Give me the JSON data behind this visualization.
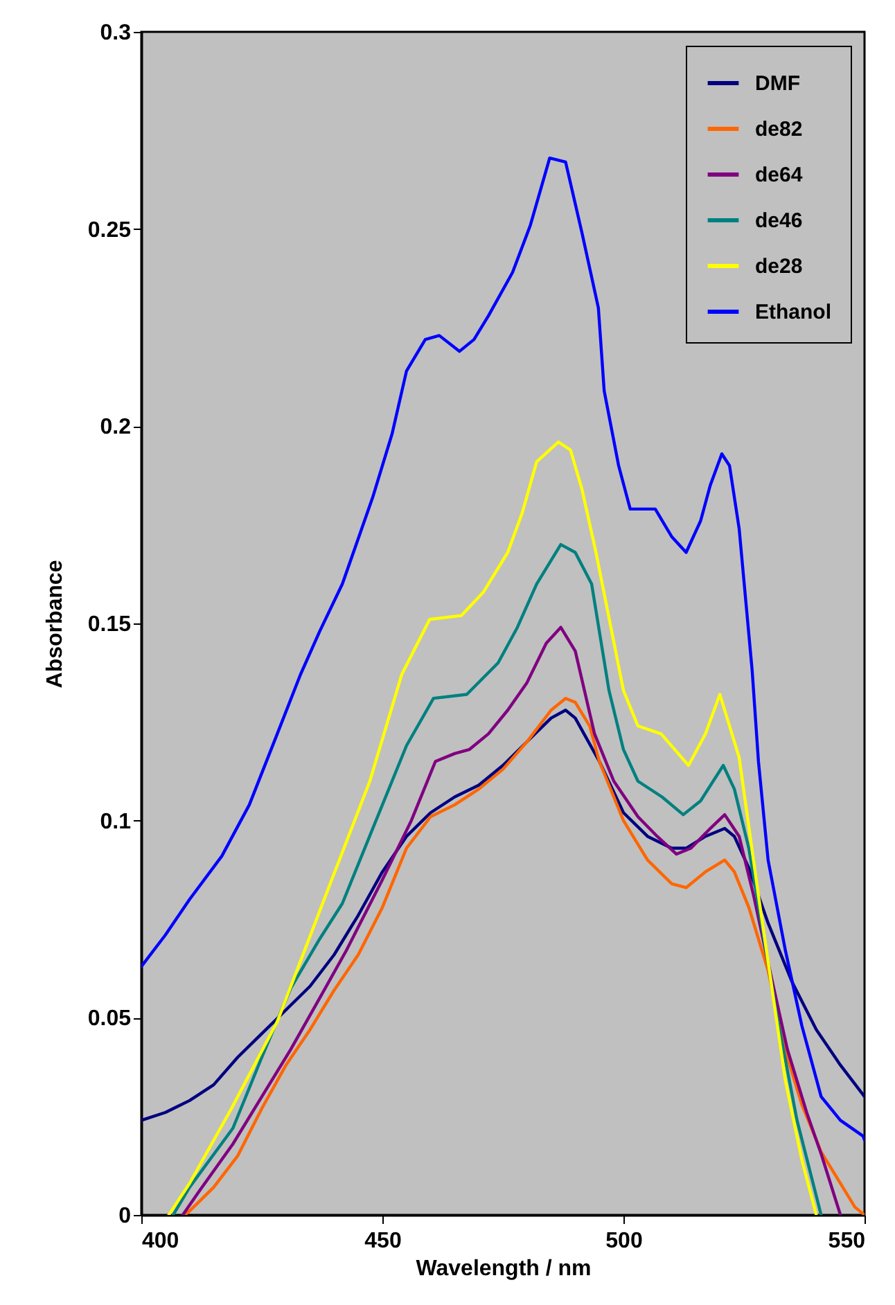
{
  "chart_data": {
    "type": "line",
    "xlabel": "Wavelength / nm",
    "ylabel": "Absorbance",
    "xlim": [
      400,
      550
    ],
    "xticks": [
      400,
      450,
      500,
      550
    ],
    "ylim": [
      0,
      0.3
    ],
    "yticks": [
      0,
      0.05,
      0.1,
      0.15,
      0.2,
      0.25,
      0.3
    ],
    "grid": false,
    "legend": "top right",
    "marker": "none",
    "line_style": "solid",
    "series": [
      {
        "name": "DMF",
        "color": "#000080",
        "x": [
          400,
          405,
          410,
          415,
          420,
          425,
          430,
          435,
          440,
          445,
          450,
          455,
          460,
          465,
          470,
          475,
          480,
          485,
          488,
          490,
          495,
          500,
          505,
          510,
          513,
          517,
          521,
          523,
          526,
          530,
          535,
          540,
          545,
          550
        ],
        "values": [
          0.024,
          0.026,
          0.029,
          0.033,
          0.04,
          0.046,
          0.052,
          0.058,
          0.066,
          0.076,
          0.087,
          0.096,
          0.102,
          0.106,
          0.109,
          0.114,
          0.12,
          0.126,
          0.128,
          0.126,
          0.115,
          0.102,
          0.096,
          0.093,
          0.093,
          0.096,
          0.098,
          0.096,
          0.088,
          0.074,
          0.059,
          0.047,
          0.038,
          0.03
        ]
      },
      {
        "name": "de82",
        "color": "#ff6600",
        "x": [
          409,
          410,
          415,
          420,
          425,
          430,
          435,
          440,
          445,
          450,
          455,
          460,
          465,
          470,
          475,
          480,
          485,
          488,
          490,
          493,
          495,
          500,
          505,
          510,
          513,
          517,
          521,
          523,
          526,
          530,
          534,
          537,
          541,
          545,
          548,
          550
        ],
        "values": [
          0,
          0.001,
          0.007,
          0.015,
          0.027,
          0.038,
          0.047,
          0.057,
          0.066,
          0.078,
          0.093,
          0.101,
          0.104,
          0.108,
          0.113,
          0.12,
          0.128,
          0.131,
          0.13,
          0.124,
          0.115,
          0.1,
          0.09,
          0.084,
          0.083,
          0.087,
          0.09,
          0.087,
          0.078,
          0.062,
          0.04,
          0.028,
          0.016,
          0.008,
          0.002,
          0
        ]
      },
      {
        "name": "de64",
        "color": "#800080",
        "x": [
          408.6,
          412,
          419,
          425,
          431,
          437,
          442.5,
          450,
          456,
          461,
          465,
          468,
          472,
          476,
          480,
          484,
          487,
          490,
          494,
          498,
          503,
          507,
          511,
          514,
          518,
          521,
          524,
          527,
          530,
          534,
          538,
          541,
          545
        ],
        "values": [
          0,
          0.006,
          0.018,
          0.03,
          0.042,
          0.055,
          0.067,
          0.085,
          0.1,
          0.115,
          0.117,
          0.118,
          0.122,
          0.128,
          0.135,
          0.145,
          0.149,
          0.143,
          0.122,
          0.11,
          0.101,
          0.096,
          0.0915,
          0.093,
          0.098,
          0.1015,
          0.096,
          0.081,
          0.064,
          0.042,
          0.026,
          0.0155,
          0
        ]
      },
      {
        "name": "de46",
        "color": "#008080",
        "x": [
          406.6,
          410,
          419,
          425,
          431,
          437,
          441.7,
          448,
          455,
          460.6,
          467.5,
          474,
          478,
          482,
          487,
          490,
          493.4,
          497,
          500,
          503,
          508,
          512.4,
          516,
          520.7,
          523,
          526,
          531.6,
          536,
          541
        ],
        "values": [
          0,
          0.007,
          0.022,
          0.04,
          0.0575,
          0.07,
          0.079,
          0.098,
          0.119,
          0.131,
          0.132,
          0.14,
          0.149,
          0.16,
          0.17,
          0.168,
          0.16,
          0.133,
          0.118,
          0.11,
          0.106,
          0.1015,
          0.105,
          0.114,
          0.108,
          0.093,
          0.052,
          0.024,
          0
        ]
      },
      {
        "name": "de28",
        "color": "#ffff00",
        "x": [
          405.7,
          410,
          418.7,
          428.2,
          437.6,
          447.4,
          454,
          459.8,
          466.4,
          471,
          476,
          479,
          482,
          486.5,
          489,
          491.4,
          494.3,
          500,
          503,
          507.8,
          513.5,
          517,
          520,
          524,
          528,
          533.6,
          537,
          540
        ],
        "values": [
          0,
          0.008,
          0.027,
          0.049,
          0.079,
          0.11,
          0.137,
          0.151,
          0.152,
          0.158,
          0.168,
          0.178,
          0.191,
          0.196,
          0.194,
          0.184,
          0.168,
          0.133,
          0.124,
          0.122,
          0.114,
          0.122,
          0.132,
          0.116,
          0.081,
          0.034,
          0.014,
          0
        ]
      },
      {
        "name": "Ethanol",
        "color": "#0000ff",
        "x": [
          400,
          405,
          410,
          416.7,
          422.4,
          428.2,
          433,
          437,
          441.7,
          448,
          452,
          455,
          458.9,
          461.8,
          466,
          469,
          472,
          477,
          480.7,
          484.7,
          488,
          491.4,
          494.8,
          496,
          499,
          501.4,
          504,
          506.6,
          510,
          513,
          516,
          518,
          520.4,
          522,
          524,
          526.7,
          528,
          530,
          533.6,
          537,
          541,
          545,
          549.7,
          550
        ],
        "values": [
          0.063,
          0.071,
          0.08,
          0.091,
          0.104,
          0.122,
          0.137,
          0.148,
          0.16,
          0.182,
          0.198,
          0.214,
          0.222,
          0.223,
          0.219,
          0.222,
          0.228,
          0.239,
          0.251,
          0.268,
          0.267,
          0.249,
          0.23,
          0.209,
          0.19,
          0.179,
          0.179,
          0.179,
          0.172,
          0.168,
          0.176,
          0.185,
          0.193,
          0.19,
          0.174,
          0.138,
          0.115,
          0.09,
          0.067,
          0.048,
          0.03,
          0.024,
          0.02,
          0.019
        ]
      }
    ]
  }
}
